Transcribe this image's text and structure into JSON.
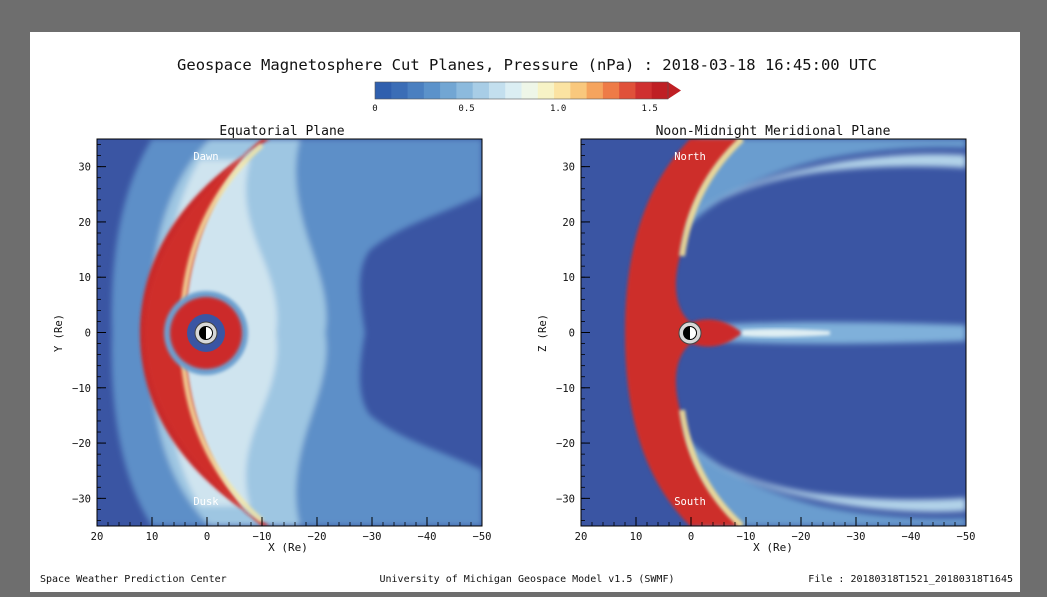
{
  "title": "Geospace Magnetosphere Cut Planes, Pressure (nPa) : 2018-03-18 16:45:00 UTC",
  "colorbar": {
    "ticks": [
      "0",
      "0.5",
      "1.0",
      "1.5"
    ],
    "tick_values": [
      0,
      0.5,
      1.0,
      1.5
    ],
    "range": [
      0,
      1.6
    ],
    "colors": [
      "#2f5fae",
      "#3b6db6",
      "#4a7fc0",
      "#5b92ca",
      "#72a6d3",
      "#8cbadd",
      "#a8cde6",
      "#c3dfee",
      "#dbeef3",
      "#eef6e8",
      "#f7f3c6",
      "#fbe3a2",
      "#f9c87d",
      "#f5a45e",
      "#ee7b47",
      "#e0513a",
      "#cf3030",
      "#bf1f24"
    ]
  },
  "panels": [
    {
      "title": "Equatorial Plane",
      "ylabel": "Y (Re)",
      "xlabel": "X (Re)",
      "top_label": "Dawn",
      "bottom_label": "Dusk"
    },
    {
      "title": "Noon-Midnight Meridional Plane",
      "ylabel": "Z (Re)",
      "xlabel": "X (Re)",
      "top_label": "North",
      "bottom_label": "South"
    }
  ],
  "footer": {
    "left": "Space Weather Prediction Center",
    "center": "University of Michigan Geospace Model v1.5 (SWMF)",
    "right": "File : 20180318T1521_20180318T1645"
  },
  "chart_data": [
    {
      "type": "heatmap",
      "title": "Equatorial Plane",
      "xlabel": "X (Re)",
      "ylabel": "Y (Re)",
      "xlim": [
        20,
        -50
      ],
      "ylim": [
        -35,
        35
      ],
      "xticks": [
        20,
        10,
        0,
        -10,
        -20,
        -30,
        -40,
        -50
      ],
      "yticks": [
        30,
        20,
        10,
        0,
        -10,
        -20,
        -30
      ],
      "xtick_labels": [
        "20",
        "10",
        "0",
        "−10",
        "−20",
        "−30",
        "−40",
        "−50"
      ],
      "ytick_labels": [
        "30",
        "20",
        "10",
        "0",
        "−10",
        "−20",
        "−30"
      ],
      "value": "Pressure (nPa)",
      "background_value": 0.05,
      "features": [
        {
          "name": "magnetosheath",
          "pressure": 1.5,
          "subsolar_x": 11.5,
          "flank_y": 34
        },
        {
          "name": "ring current",
          "pressure": 1.5,
          "center": [
            0,
            0
          ],
          "radius": 8
        },
        {
          "name": "earth",
          "center": [
            0,
            0
          ],
          "radius": 1
        }
      ]
    },
    {
      "type": "heatmap",
      "title": "Noon-Midnight Meridional Plane",
      "xlabel": "X (Re)",
      "ylabel": "Z (Re)",
      "xlim": [
        20,
        -50
      ],
      "ylim": [
        -35,
        35
      ],
      "xticks": [
        20,
        10,
        0,
        -10,
        -20,
        -30,
        -40,
        -50
      ],
      "yticks": [
        30,
        20,
        10,
        0,
        -10,
        -20,
        -30
      ],
      "xtick_labels": [
        "20",
        "10",
        "0",
        "−10",
        "−20",
        "−30",
        "−40",
        "−50"
      ],
      "ytick_labels": [
        "30",
        "20",
        "10",
        "0",
        "−10",
        "−20",
        "−30"
      ],
      "value": "Pressure (nPa)",
      "background_value": 0.05,
      "features": [
        {
          "name": "magnetosheath",
          "pressure": 1.5,
          "subsolar_x": 11.5,
          "flank_z": 34
        },
        {
          "name": "plasma sheet",
          "pressure": 1.5,
          "x_range": [
            -1,
            -9
          ],
          "z": 0
        },
        {
          "name": "earth",
          "center": [
            0,
            0
          ],
          "radius": 1
        }
      ]
    }
  ]
}
